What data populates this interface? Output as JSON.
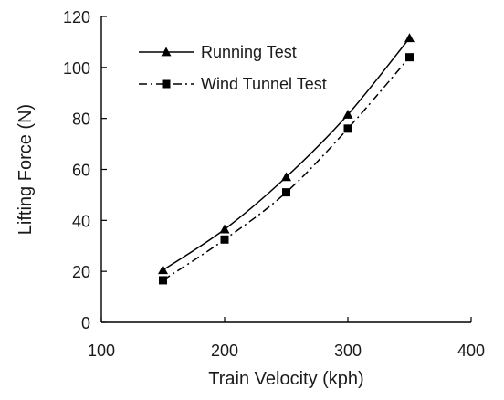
{
  "chart_data": {
    "type": "line",
    "title": "",
    "xlabel": "Train Velocity (kph)",
    "ylabel": "Lifting Force (N)",
    "xlim": [
      100,
      400
    ],
    "ylim": [
      0,
      120
    ],
    "xticks": [
      100,
      200,
      300,
      400
    ],
    "yticks": [
      0,
      20,
      40,
      60,
      80,
      100,
      120
    ],
    "grid": false,
    "legend_position": "top-left",
    "series": [
      {
        "name": "Running Test",
        "x": [
          150,
          200,
          250,
          300,
          350
        ],
        "y": [
          20.5,
          36.5,
          57,
          81.5,
          111.5
        ],
        "marker": "triangle",
        "line_style": "solid",
        "color": "#000000"
      },
      {
        "name": "Wind Tunnel Test",
        "x": [
          150,
          200,
          250,
          300,
          350
        ],
        "y": [
          16.5,
          32.5,
          51,
          76,
          104
        ],
        "marker": "square",
        "line_style": "dash-dot",
        "color": "#000000"
      }
    ]
  }
}
